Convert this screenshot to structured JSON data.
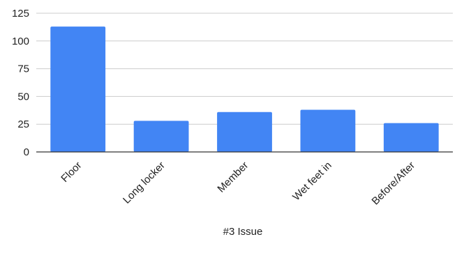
{
  "chart_data": {
    "type": "bar",
    "title": "",
    "xlabel": "#3 Issue",
    "ylabel": "",
    "categories": [
      "Floor",
      "Long locker",
      "Member",
      "Wet feet in",
      "Before/After"
    ],
    "values": [
      113,
      28,
      36,
      38,
      26
    ],
    "ylim": [
      0,
      125
    ],
    "yticks": [
      0,
      25,
      50,
      75,
      100,
      125
    ],
    "grid": true,
    "legend": "none",
    "colors": {
      "bar": "#4285f4",
      "grid": "#cccccc",
      "axis": "#333333",
      "text": "#222222"
    }
  }
}
